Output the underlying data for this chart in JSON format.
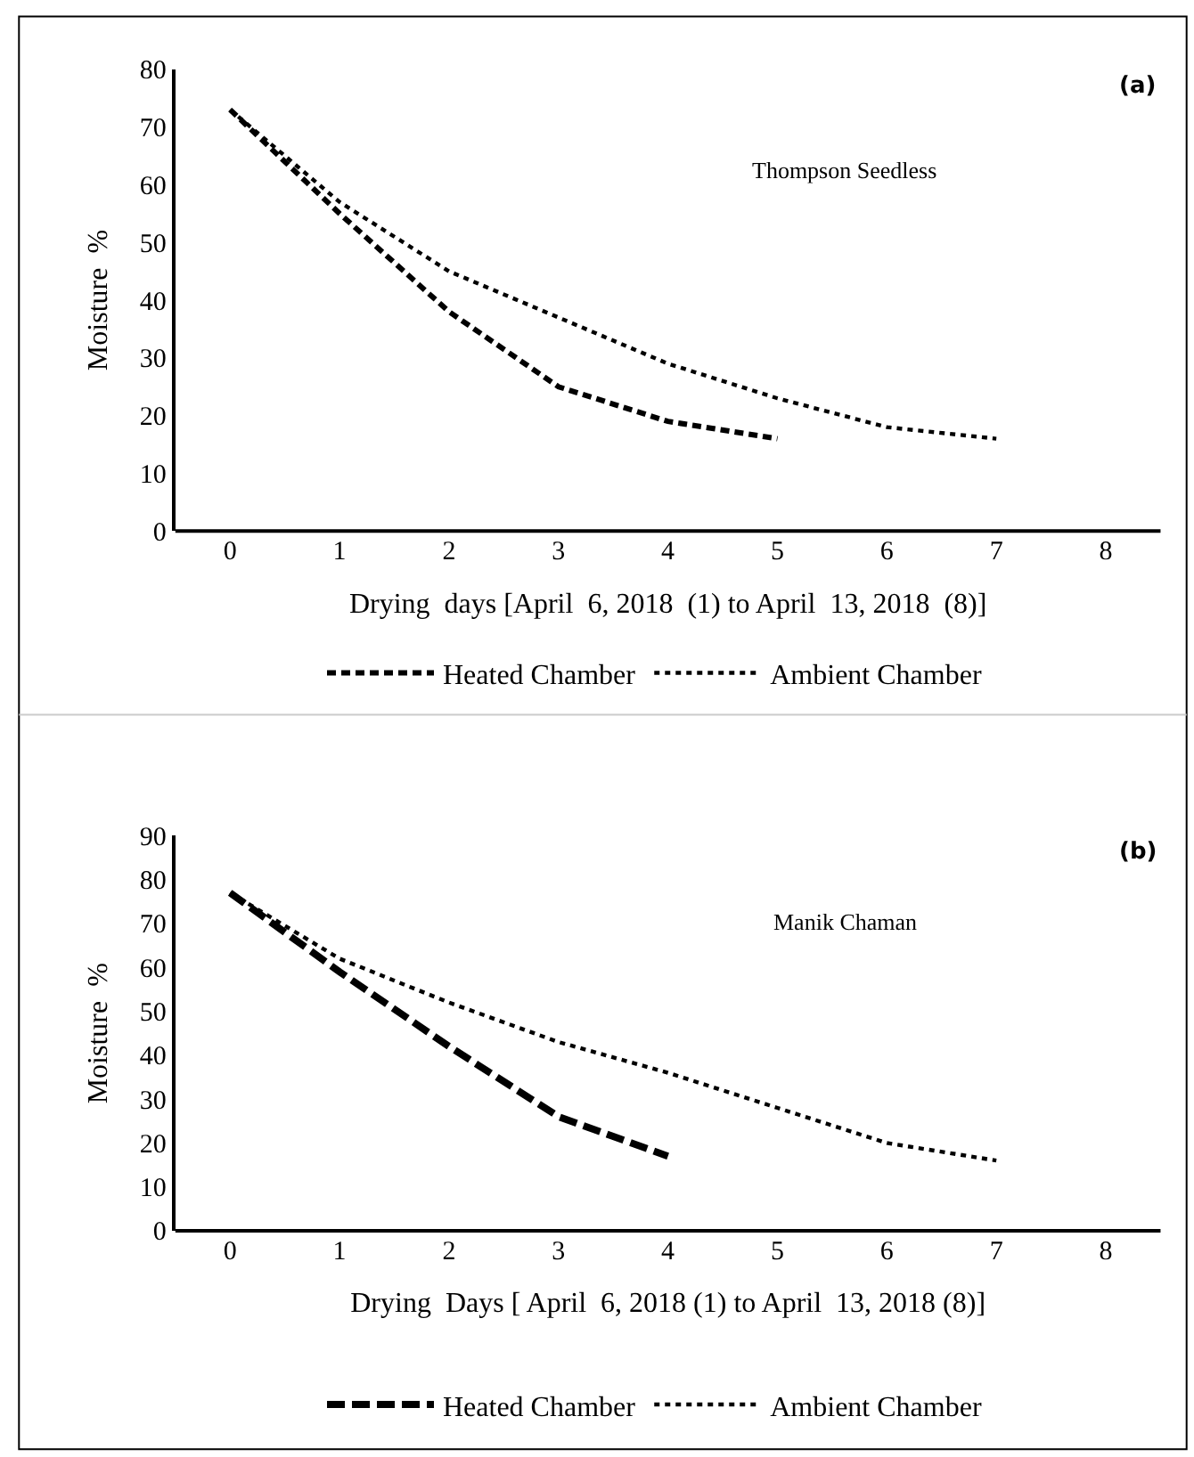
{
  "chart_data": [
    {
      "type": "line",
      "annotations": [
        "(a)",
        "Thompson Seedless"
      ],
      "xlabel": "Drying  days [April  6, 2018  (1) to April  13, 2018  (8)]",
      "ylabel": "Moisture  %",
      "x": [
        0,
        1,
        2,
        3,
        4,
        5,
        6,
        7
      ],
      "xlim": [
        -0.5,
        8.5
      ],
      "xticks": [
        0,
        1,
        2,
        3,
        4,
        5,
        6,
        7,
        8
      ],
      "ylim": [
        0,
        80
      ],
      "yticks": [
        0,
        10,
        20,
        30,
        40,
        50,
        60,
        70,
        80
      ],
      "grid": false,
      "legend": "bottom",
      "marker": "none",
      "series": [
        {
          "name": "Heated Chamber",
          "color": "#000000",
          "line_style": "dashed",
          "values": [
            73,
            55,
            38,
            25,
            19,
            16,
            null,
            null
          ]
        },
        {
          "name": "Ambient Chamber",
          "color": "#000000",
          "line_style": "dotted",
          "values": [
            73,
            57,
            45,
            37,
            29,
            23,
            18,
            16
          ]
        }
      ]
    },
    {
      "type": "line",
      "annotations": [
        "(b)",
        "Manik Chaman"
      ],
      "xlabel": "Drying  Days [ April  6, 2018 (1) to April  13, 2018 (8)]",
      "ylabel": "Moisture  %",
      "x": [
        0,
        1,
        2,
        3,
        4,
        5,
        6,
        7
      ],
      "xlim": [
        -0.5,
        8.5
      ],
      "xticks": [
        0,
        1,
        2,
        3,
        4,
        5,
        6,
        7,
        8
      ],
      "ylim": [
        0,
        90
      ],
      "yticks": [
        0,
        10,
        20,
        30,
        40,
        50,
        60,
        70,
        80,
        90
      ],
      "grid": false,
      "legend": "bottom",
      "marker": "none",
      "series": [
        {
          "name": "Heated Chamber",
          "color": "#000000",
          "line_style": "dashed",
          "values": [
            77,
            59,
            42,
            26,
            17,
            null,
            null,
            null
          ]
        },
        {
          "name": "Ambient Chamber",
          "color": "#000000",
          "line_style": "dotted",
          "values": [
            77,
            62,
            52,
            43,
            36,
            28,
            20,
            16
          ]
        }
      ]
    }
  ]
}
